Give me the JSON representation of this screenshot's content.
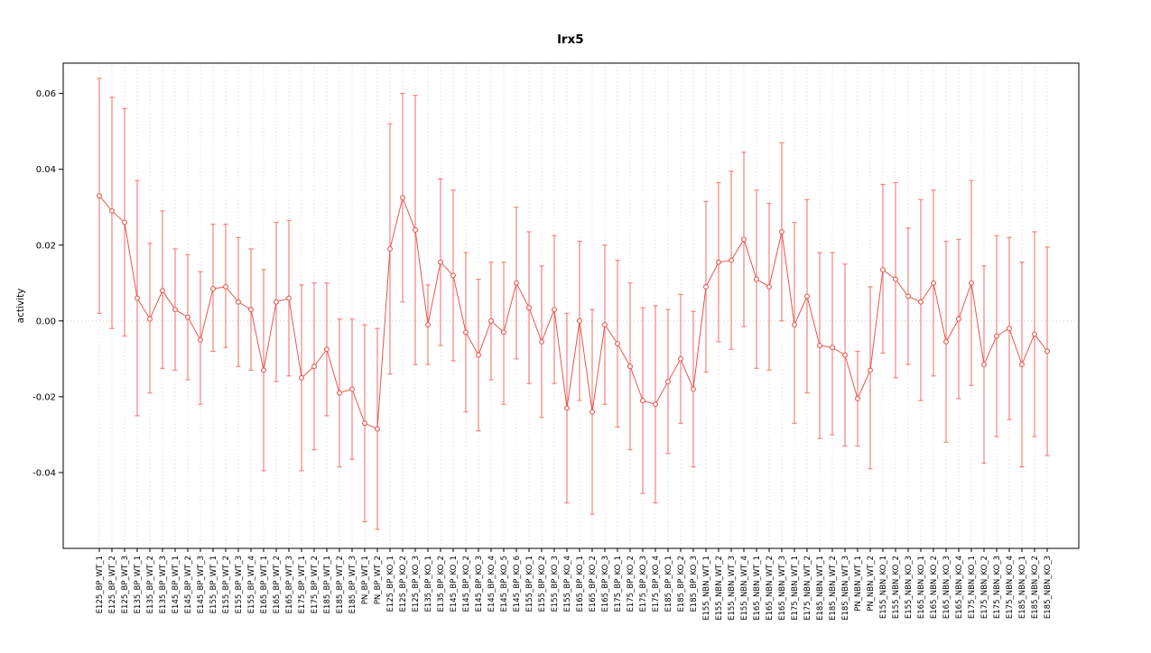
{
  "chart_data": {
    "type": "line",
    "title": "lrx5",
    "xlabel": "",
    "ylabel": "activity",
    "ylim": [
      -0.06,
      0.068
    ],
    "grid": "vertical-dotted-per-category, dotted-zero-line",
    "legend": "none",
    "point_style": "open-circle-with-error-bars",
    "colors": {
      "line": "#e8554e",
      "point": "#e8554e",
      "error_bar": "#f4837d",
      "grid": "#d9d9d9",
      "zero_line": "#cccccc",
      "box": "#000000"
    },
    "yticks": [
      {
        "v": -0.04,
        "label": "-0.04"
      },
      {
        "v": -0.02,
        "label": "-0.02"
      },
      {
        "v": 0.0,
        "label": "0.00"
      },
      {
        "v": 0.02,
        "label": "0.02"
      },
      {
        "v": 0.04,
        "label": "0.04"
      },
      {
        "v": 0.06,
        "label": "0.06"
      }
    ],
    "categories": [
      "E125_BP_WT_1",
      "E125_BP_WT_2",
      "E125_BP_WT_3",
      "E135_BP_WT_1",
      "E135_BP_WT_2",
      "E135_BP_WT_3",
      "E145_BP_WT_1",
      "E145_BP_WT_2",
      "E145_BP_WT_3",
      "E155_BP_WT_1",
      "E155_BP_WT_2",
      "E155_BP_WT_3",
      "E155_BP_WT_4",
      "E165_BP_WT_1",
      "E165_BP_WT_2",
      "E165_BP_WT_3",
      "E175_BP_WT_1",
      "E175_BP_WT_2",
      "E185_BP_WT_1",
      "E185_BP_WT_2",
      "E185_BP_WT_3",
      "PN_BP_WT_1",
      "PN_BP_WT_2",
      "E125_BP_KO_1",
      "E125_BP_KO_2",
      "E125_BP_KO_3",
      "E135_BP_KO_1",
      "E135_BP_KO_2",
      "E145_BP_KO_1",
      "E145_BP_KO_2",
      "E145_BP_KO_3",
      "E145_BP_KO_4",
      "E145_BP_KO_5",
      "E145_BP_KO_6",
      "E155_BP_KO_1",
      "E155_BP_KO_2",
      "E155_BP_KO_3",
      "E155_BP_KO_4",
      "E165_BP_KO_1",
      "E165_BP_KO_2",
      "E165_BP_KO_3",
      "E175_BP_KO_1",
      "E175_BP_KO_2",
      "E175_BP_KO_3",
      "E175_BP_KO_4",
      "E185_BP_KO_1",
      "E185_BP_KO_2",
      "E185_BP_KO_3",
      "E155_NBN_WT_1",
      "E155_NBN_WT_2",
      "E155_NBN_WT_3",
      "E155_NBN_WT_4",
      "E165_NBN_WT_1",
      "E165_NBN_WT_2",
      "E165_NBN_WT_3",
      "E175_NBN_WT_1",
      "E175_NBN_WT_2",
      "E185_NBN_WT_1",
      "E185_NBN_WT_2",
      "E185_NBN_WT_3",
      "PN_NBN_WT_1",
      "PN_NBN_WT_2",
      "E155_NBN_KO_1",
      "E155_NBN_KO_2",
      "E155_NBN_KO_3",
      "E165_NBN_KO_1",
      "E165_NBN_KO_2",
      "E165_NBN_KO_3",
      "E165_NBN_KO_4",
      "E175_NBN_KO_1",
      "E175_NBN_KO_2",
      "E175_NBN_KO_3",
      "E175_NBN_KO_4",
      "E185_NBN_KO_1",
      "E185_NBN_KO_2",
      "E185_NBN_KO_3"
    ],
    "series": [
      {
        "name": "activity",
        "means": [
          0.033,
          0.029,
          0.026,
          0.006,
          0.0005,
          0.008,
          0.003,
          0.001,
          -0.005,
          0.0085,
          0.009,
          0.005,
          0.003,
          -0.013,
          0.005,
          0.006,
          -0.015,
          -0.012,
          -0.0075,
          -0.019,
          -0.018,
          -0.027,
          -0.0285,
          0.019,
          0.0325,
          0.024,
          -0.001,
          0.0155,
          0.012,
          -0.003,
          -0.009,
          0.0,
          -0.003,
          0.01,
          0.0035,
          -0.0055,
          0.003,
          -0.023,
          0.0,
          -0.024,
          -0.001,
          -0.006,
          -0.012,
          -0.021,
          -0.022,
          -0.016,
          -0.01,
          -0.018,
          0.009,
          0.0155,
          0.016,
          0.0215,
          0.011,
          0.009,
          0.0235,
          -0.001,
          0.0065,
          -0.0065,
          -0.007,
          -0.009,
          -0.0205,
          -0.013,
          0.0135,
          0.011,
          0.0065,
          0.005,
          0.01,
          -0.0055,
          0.0005,
          0.01,
          -0.0115,
          -0.004,
          -0.002,
          -0.0115,
          -0.0035,
          -0.008
        ],
        "ci_low": [
          0.002,
          -0.002,
          -0.004,
          -0.025,
          -0.019,
          -0.0125,
          -0.013,
          -0.0155,
          -0.022,
          -0.008,
          -0.007,
          -0.012,
          -0.013,
          -0.0395,
          -0.016,
          -0.0145,
          -0.0395,
          -0.034,
          -0.025,
          -0.0385,
          -0.0365,
          -0.053,
          -0.055,
          -0.014,
          0.005,
          -0.0115,
          -0.0115,
          -0.0065,
          -0.0105,
          -0.024,
          -0.029,
          -0.0155,
          -0.022,
          -0.01,
          -0.0165,
          -0.0255,
          -0.0165,
          -0.048,
          -0.021,
          -0.051,
          -0.022,
          -0.028,
          -0.034,
          -0.0455,
          -0.048,
          -0.035,
          -0.027,
          -0.0385,
          -0.0135,
          -0.0055,
          -0.0075,
          -0.0015,
          -0.0125,
          -0.013,
          0.0,
          -0.027,
          -0.019,
          -0.031,
          -0.03,
          -0.033,
          -0.033,
          -0.039,
          -0.0085,
          -0.015,
          -0.0115,
          -0.021,
          -0.0145,
          -0.032,
          -0.0205,
          -0.017,
          -0.0375,
          -0.0305,
          -0.026,
          -0.0385,
          -0.0305,
          -0.0355
        ],
        "ci_high": [
          0.064,
          0.059,
          0.056,
          0.037,
          0.0205,
          0.029,
          0.019,
          0.0175,
          0.013,
          0.0255,
          0.0255,
          0.022,
          0.019,
          0.0135,
          0.026,
          0.0265,
          0.0095,
          0.01,
          0.01,
          0.0005,
          0.0005,
          -0.001,
          -0.002,
          0.052,
          0.06,
          0.0595,
          0.0095,
          0.0375,
          0.0345,
          0.018,
          0.011,
          0.0155,
          0.0155,
          0.03,
          0.0235,
          0.0145,
          0.0225,
          0.002,
          0.021,
          0.003,
          0.02,
          0.016,
          0.01,
          0.0035,
          0.004,
          0.003,
          0.007,
          0.0025,
          0.0315,
          0.0365,
          0.0395,
          0.0445,
          0.0345,
          0.031,
          0.047,
          0.026,
          0.032,
          0.018,
          0.018,
          0.015,
          -0.008,
          0.009,
          0.036,
          0.0365,
          0.0245,
          0.032,
          0.0345,
          0.021,
          0.0215,
          0.037,
          0.0145,
          0.0225,
          0.022,
          0.0155,
          0.0235,
          0.0195
        ]
      }
    ]
  }
}
